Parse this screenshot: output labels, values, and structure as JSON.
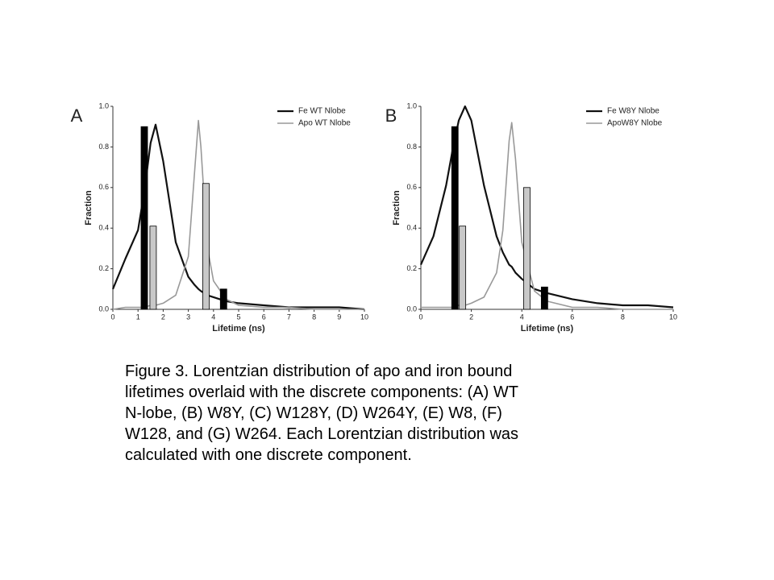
{
  "chart_data": [
    {
      "type": "line",
      "title": "A",
      "xlabel": "Lifetime (ns)",
      "ylabel": "Fraction",
      "xlim": [
        0,
        10
      ],
      "xticks": [
        0,
        1,
        2,
        3,
        4,
        5,
        6,
        7,
        8,
        9,
        10
      ],
      "ylim": [
        0,
        1
      ],
      "yticks": [
        {
          "value": 0,
          "label": "0.0"
        },
        {
          "value": 0.2,
          "label": "0.2"
        },
        {
          "value": 0.4,
          "label": "0.4"
        },
        {
          "value": 0.6,
          "label": "0.6"
        },
        {
          "value": 0.8,
          "label": "0.8"
        },
        {
          "value": 1,
          "label": "1.0"
        }
      ],
      "x": [
        0,
        0.5,
        1,
        1.25,
        1.5,
        1.7,
        2,
        2.5,
        3,
        3.25,
        3.4,
        3.5,
        3.75,
        4,
        4.5,
        5,
        6,
        7,
        8,
        9,
        10
      ],
      "series": [
        {
          "name": "Fe WT Nlobe",
          "color": "#111111",
          "values": [
            0.1,
            0.25,
            0.39,
            0.58,
            0.82,
            0.91,
            0.73,
            0.33,
            0.16,
            0.12,
            0.1,
            0.09,
            0.07,
            0.06,
            0.04,
            0.03,
            0.02,
            0.01,
            0.01,
            0.01,
            0.0
          ]
        },
        {
          "name": "Apo WT Nlobe",
          "color": "#999999",
          "values": [
            0.0,
            0.01,
            0.01,
            0.01,
            0.02,
            0.02,
            0.03,
            0.07,
            0.26,
            0.68,
            0.93,
            0.8,
            0.31,
            0.14,
            0.05,
            0.02,
            0.01,
            0.01,
            0.0,
            0.0,
            0.0
          ]
        }
      ],
      "bars": [
        {
          "x": 1.25,
          "value": 0.9,
          "color": "#000000"
        },
        {
          "x": 1.6,
          "value": 0.41,
          "color": "#c8c8c8"
        },
        {
          "x": 3.7,
          "value": 0.62,
          "color": "#c8c8c8"
        },
        {
          "x": 4.4,
          "value": 0.1,
          "color": "#000000"
        }
      ]
    },
    {
      "type": "line",
      "title": "B",
      "xlabel": "Lifetime (ns)",
      "ylabel": "Fraction",
      "xlim": [
        0,
        10
      ],
      "xticks": [
        0,
        2,
        4,
        6,
        8,
        10
      ],
      "ylim": [
        0,
        1
      ],
      "yticks": [
        {
          "value": 0,
          "label": "0.0"
        },
        {
          "value": 0.2,
          "label": "0.2"
        },
        {
          "value": 0.4,
          "label": "0.4"
        },
        {
          "value": 0.6,
          "label": "0.6"
        },
        {
          "value": 0.8,
          "label": "0.8"
        },
        {
          "value": 1,
          "label": "1.0"
        }
      ],
      "x": [
        0,
        0.5,
        1,
        1.25,
        1.5,
        1.75,
        2,
        2.5,
        3,
        3.25,
        3.5,
        3.6,
        3.75,
        4,
        4.5,
        5,
        6,
        7,
        8,
        9,
        10
      ],
      "series": [
        {
          "name": "Fe W8Y Nlobe",
          "color": "#111111",
          "values": [
            0.22,
            0.36,
            0.61,
            0.78,
            0.93,
            1.0,
            0.93,
            0.61,
            0.36,
            0.28,
            0.22,
            0.21,
            0.18,
            0.15,
            0.1,
            0.08,
            0.05,
            0.03,
            0.02,
            0.02,
            0.01
          ]
        },
        {
          "name": "ApoW8Y Nlobe",
          "color": "#999999",
          "values": [
            0.01,
            0.01,
            0.01,
            0.01,
            0.02,
            0.02,
            0.03,
            0.06,
            0.18,
            0.39,
            0.83,
            0.92,
            0.74,
            0.33,
            0.09,
            0.04,
            0.01,
            0.01,
            0.0,
            0.0,
            0.0
          ]
        }
      ],
      "bars": [
        {
          "x": 1.35,
          "value": 0.9,
          "color": "#000000"
        },
        {
          "x": 1.65,
          "value": 0.41,
          "color": "#c8c8c8"
        },
        {
          "x": 4.2,
          "value": 0.6,
          "color": "#c8c8c8"
        },
        {
          "x": 4.9,
          "value": 0.11,
          "color": "#000000"
        }
      ]
    }
  ],
  "caption": [
    "Figure 3. Lorentzian distribution of apo and iron bound",
    "lifetimes overlaid with the discrete components: (A) WT",
    "N-lobe, (B) W8Y, (C) W128Y, (D) W264Y, (E) W8, (F)",
    "W128, and (G) W264. Each Lorentzian distribution was",
    "calculated with one discrete component."
  ]
}
